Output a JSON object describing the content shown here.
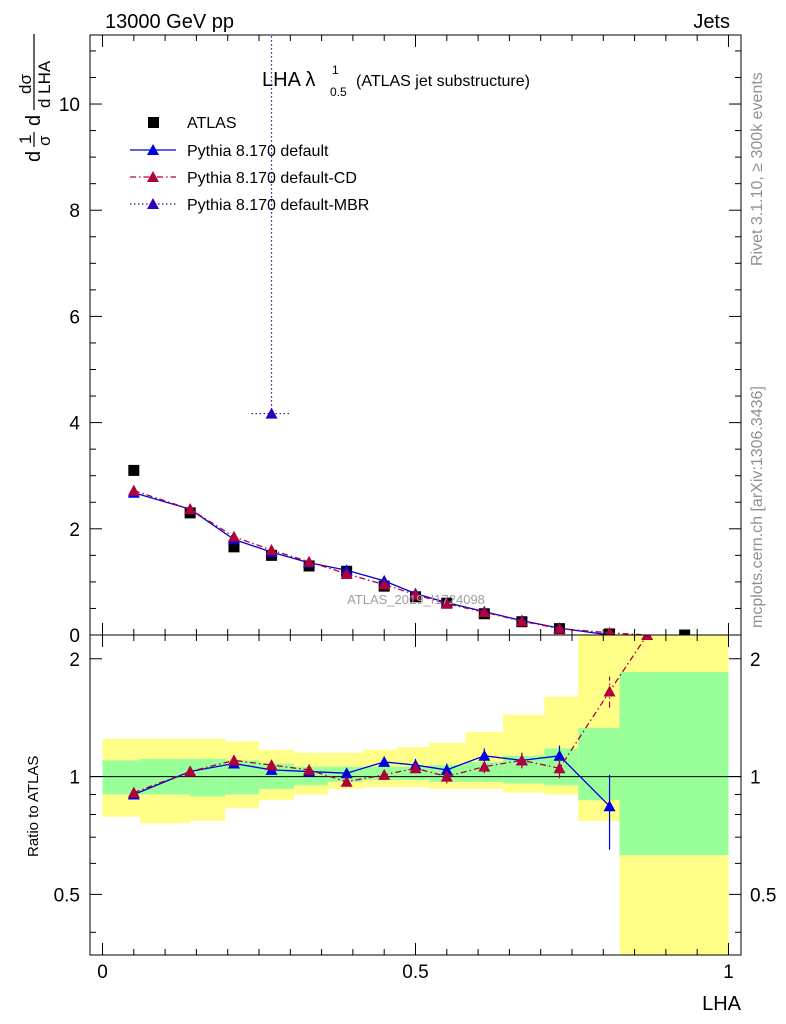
{
  "header": {
    "left": "13000 GeV pp",
    "right": "Jets"
  },
  "plot_title": {
    "main": "LHA λ",
    "sup": "1",
    "sub": "0.5",
    "suffix": "(ATLAS jet substructure)"
  },
  "side_labels": {
    "rivet": "Rivet 3.1.10, ≥ 300k events",
    "mcplots": "mcplots.cern.ch [arXiv:1306.3436]"
  },
  "watermark": "ATLAS_2019_I1724098",
  "y_label_top": {
    "d1": "d",
    "num1": "1",
    "den1": "σ",
    "d2": "d",
    "num2": "dσ",
    "den2": "d LHA"
  },
  "y_label_bottom": "Ratio to ATLAS",
  "x_label": "LHA",
  "colors": {
    "default": "#0000dd",
    "cd": "#b0003a",
    "mbr": "#3000b8",
    "band_inner": "#99ff99",
    "band_outer": "#ffff88"
  },
  "chart_data": [
    {
      "type": "scatter",
      "panel": "main",
      "xlim": [
        -0.02,
        1.02
      ],
      "ylim": [
        0,
        11.3
      ],
      "x_ticks": [
        0,
        0.5,
        1
      ],
      "y_ticks": [
        0,
        2,
        4,
        6,
        8,
        10
      ],
      "y_tick_labels": [
        "0",
        "2",
        "4",
        "6",
        "8",
        "10"
      ],
      "legend": [
        "ATLAS",
        "Pythia 8.170 default",
        "Pythia 8.170 default-CD",
        "Pythia 8.170 default-MBR"
      ],
      "legend_position": "top-left",
      "series": [
        {
          "name": "ATLAS",
          "style": "markers",
          "x": [
            0.05,
            0.14,
            0.21,
            0.27,
            0.33,
            0.39,
            0.45,
            0.5,
            0.55,
            0.61,
            0.67,
            0.73,
            0.81,
            0.93
          ],
          "y": [
            3.1,
            2.3,
            1.66,
            1.5,
            1.3,
            1.2,
            0.92,
            0.72,
            0.6,
            0.4,
            0.25,
            0.12,
            0.02,
            0.0
          ]
        },
        {
          "name": "Pythia 8.170 default",
          "style": "solid",
          "x": [
            0.05,
            0.14,
            0.21,
            0.27,
            0.33,
            0.39,
            0.45,
            0.5,
            0.55,
            0.61,
            0.67,
            0.73,
            0.81
          ],
          "y": [
            2.68,
            2.37,
            1.8,
            1.56,
            1.36,
            1.22,
            1.02,
            0.78,
            0.61,
            0.44,
            0.27,
            0.13,
            0.0
          ]
        },
        {
          "name": "Pythia 8.170 default-CD",
          "style": "dashdot",
          "x": [
            0.05,
            0.14,
            0.21,
            0.27,
            0.33,
            0.39,
            0.45,
            0.5,
            0.55,
            0.61,
            0.67,
            0.73,
            0.81,
            0.87
          ],
          "y": [
            2.72,
            2.37,
            1.85,
            1.6,
            1.38,
            1.15,
            0.95,
            0.76,
            0.59,
            0.43,
            0.26,
            0.12,
            0.04,
            0.0
          ]
        },
        {
          "name": "Pythia 8.170 default-MBR",
          "style": "dotted",
          "x": [
            0.27
          ],
          "y": [
            4.17
          ],
          "yerr": [
            [
              0.0,
              8.33
            ]
          ]
        }
      ]
    },
    {
      "type": "line",
      "panel": "ratio",
      "xlabel": "LHA",
      "ylabel": "Ratio to ATLAS",
      "xlim": [
        -0.02,
        1.02
      ],
      "ylim": [
        0.35,
        2.3
      ],
      "y_scale": "log",
      "x_ticks": [
        0,
        0.5,
        1
      ],
      "x_tick_labels": [
        "0",
        "0.5",
        "1"
      ],
      "y_ticks": [
        0.5,
        1,
        2
      ],
      "y_tick_labels": [
        "0.5",
        "1",
        "2"
      ],
      "reference_line": 1,
      "bands": {
        "edges": [
          0,
          0.06,
          0.14,
          0.196,
          0.25,
          0.306,
          0.36,
          0.416,
          0.47,
          0.522,
          0.58,
          0.64,
          0.706,
          0.76,
          0.826,
          0.862,
          1.0
        ],
        "inner_lo": [
          0.9,
          0.9,
          0.89,
          0.9,
          0.93,
          0.95,
          0.97,
          0.98,
          0.98,
          0.97,
          0.97,
          0.96,
          0.95,
          0.87,
          0.63,
          0.63
        ],
        "inner_hi": [
          1.1,
          1.11,
          1.11,
          1.1,
          1.08,
          1.06,
          1.06,
          1.06,
          1.06,
          1.07,
          1.09,
          1.13,
          1.18,
          1.33,
          1.85,
          1.85
        ],
        "outer_lo": [
          0.79,
          0.76,
          0.77,
          0.83,
          0.87,
          0.9,
          0.93,
          0.94,
          0.94,
          0.93,
          0.93,
          0.91,
          0.9,
          0.77,
          0.35,
          0.35
        ],
        "outer_hi": [
          1.25,
          1.25,
          1.25,
          1.23,
          1.17,
          1.15,
          1.15,
          1.17,
          1.19,
          1.22,
          1.3,
          1.44,
          1.6,
          2.3,
          2.3,
          2.3
        ]
      },
      "series": [
        {
          "name": "Pythia 8.170 default",
          "style": "solid",
          "x": [
            0.05,
            0.14,
            0.21,
            0.27,
            0.33,
            0.39,
            0.45,
            0.5,
            0.55,
            0.61,
            0.67,
            0.73,
            0.81
          ],
          "y": [
            0.9,
            1.03,
            1.08,
            1.04,
            1.03,
            1.02,
            1.09,
            1.07,
            1.04,
            1.13,
            1.1,
            1.13,
            0.84
          ],
          "yerr": [
            [
              0.01,
              0.01
            ],
            [
              0.01,
              0.01
            ],
            [
              0.02,
              0.02
            ],
            [
              0.02,
              0.02
            ],
            [
              0.02,
              0.02
            ],
            [
              0.03,
              0.03
            ],
            [
              0.03,
              0.03
            ],
            [
              0.04,
              0.04
            ],
            [
              0.04,
              0.04
            ],
            [
              0.05,
              0.05
            ],
            [
              0.05,
              0.05
            ],
            [
              0.07,
              0.07
            ],
            [
              0.19,
              0.17
            ]
          ]
        },
        {
          "name": "Pythia 8.170 default-CD",
          "style": "dashdot",
          "x": [
            0.05,
            0.14,
            0.21,
            0.27,
            0.33,
            0.39,
            0.45,
            0.5,
            0.55,
            0.61,
            0.67,
            0.73,
            0.81,
            0.87
          ],
          "y": [
            0.91,
            1.03,
            1.1,
            1.07,
            1.04,
            0.97,
            1.01,
            1.05,
            1.0,
            1.06,
            1.1,
            1.05,
            1.65,
            2.3
          ],
          "yerr": [
            [
              0.01,
              0.01
            ],
            [
              0.01,
              0.01
            ],
            [
              0.02,
              0.02
            ],
            [
              0.02,
              0.02
            ],
            [
              0.02,
              0.02
            ],
            [
              0.02,
              0.02
            ],
            [
              0.03,
              0.03
            ],
            [
              0.03,
              0.03
            ],
            [
              0.04,
              0.04
            ],
            [
              0.04,
              0.04
            ],
            [
              0.05,
              0.05
            ],
            [
              0.06,
              0.06
            ],
            [
              0.15,
              0.15
            ],
            [
              0.0,
              0.0
            ]
          ]
        }
      ]
    }
  ]
}
